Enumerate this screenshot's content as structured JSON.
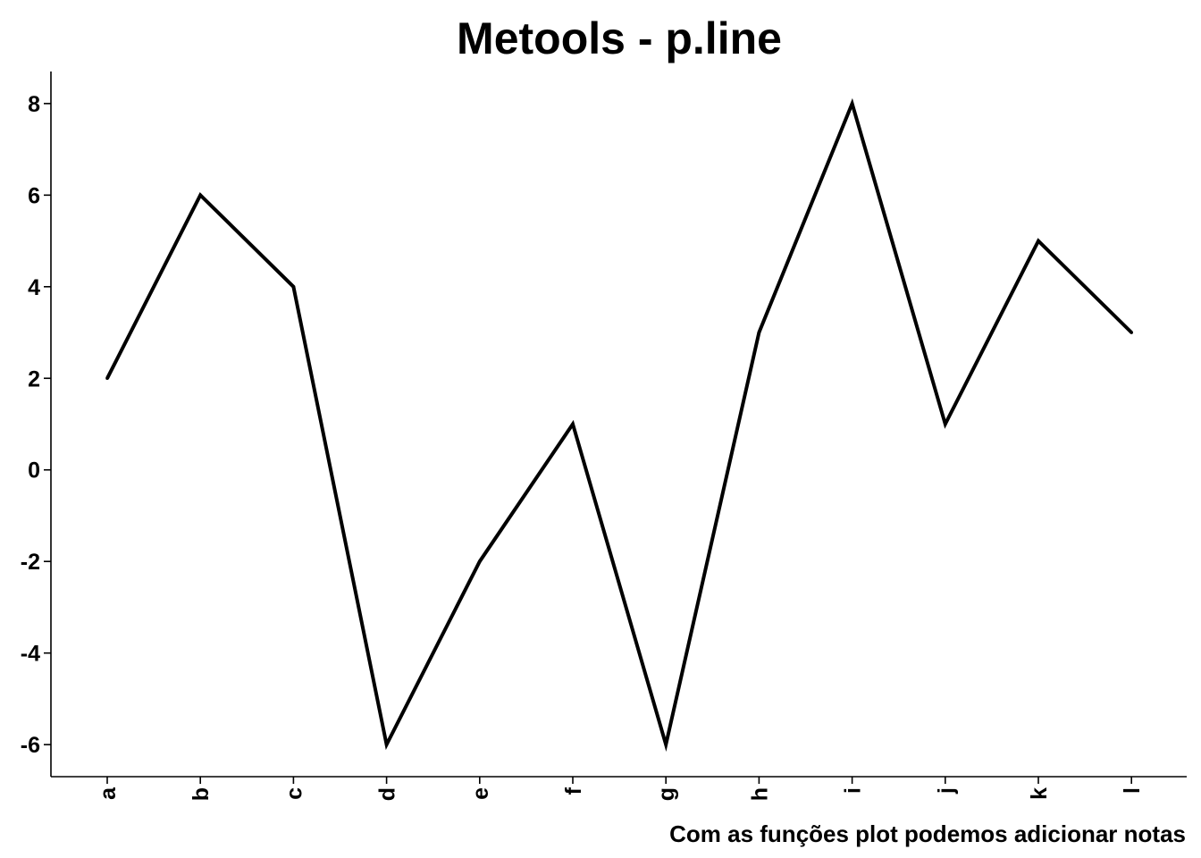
{
  "chart_data": {
    "type": "line",
    "title": "Metools - p.line",
    "caption": "Com as funções plot podemos adicionar notas",
    "xlabel": "",
    "ylabel": "",
    "categories": [
      "a",
      "b",
      "c",
      "d",
      "e",
      "f",
      "g",
      "h",
      "i",
      "j",
      "k",
      "l"
    ],
    "values": [
      2,
      6,
      4,
      -6,
      -2,
      1,
      -6,
      3,
      8,
      1,
      5,
      3
    ],
    "ylim": [
      -6.7,
      8.7
    ],
    "yticks": [
      -6,
      -4,
      -2,
      0,
      2,
      4,
      6,
      8
    ],
    "grid": false,
    "legend": "none",
    "line_color": "#000000"
  }
}
